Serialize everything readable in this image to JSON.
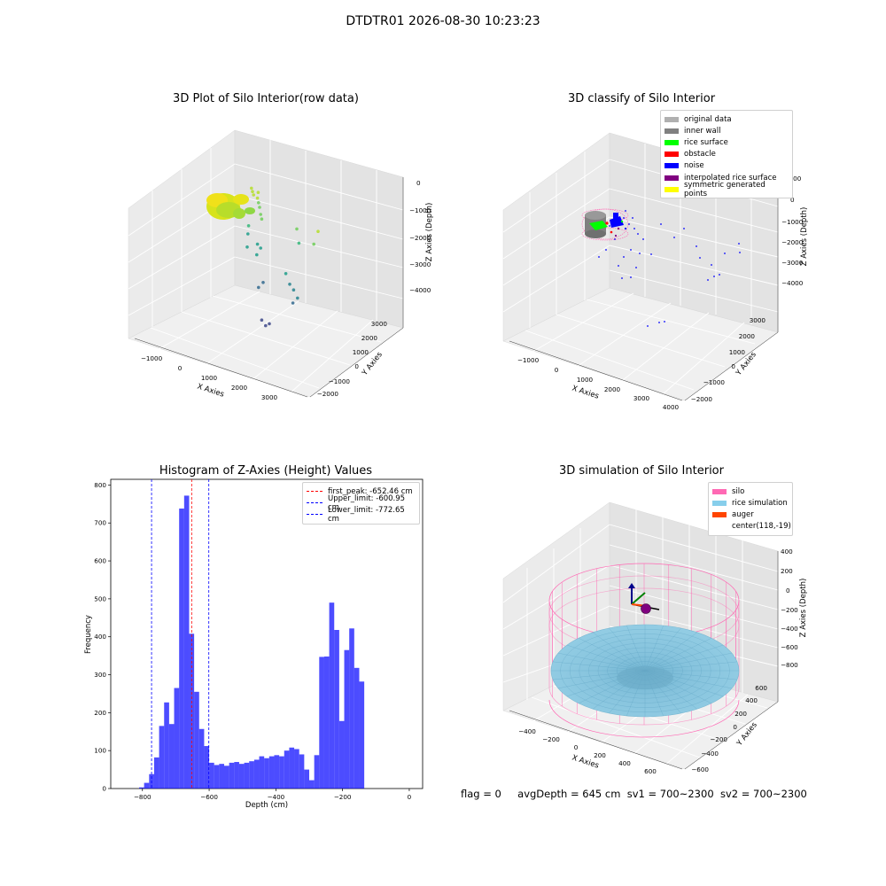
{
  "figure": {
    "title": "DTDTR01 2026-08-30 10:23:23",
    "status": {
      "flag": "flag = 0",
      "avg_depth": "avgDepth = 645 cm",
      "sv1": "sv1 = 700~2300",
      "sv2": "sv2 = 700~2300"
    }
  },
  "chart_data": [
    {
      "type": "scatter",
      "title": "3D Plot of Silo Interior(row data)",
      "xlabel": "X Axies",
      "ylabel": "Y Axies",
      "zlabel": "Z Axies (Depth)",
      "x_ticks": [
        "−1000",
        "0",
        "1000",
        "2000",
        "3000"
      ],
      "y_ticks": [
        "−2000",
        "−1000",
        "0",
        "1000",
        "2000",
        "3000"
      ],
      "z_ticks": [
        "0",
        "−1000",
        "−2000",
        "−3000",
        "−4000"
      ],
      "colormap": "viridis",
      "points": [
        {
          "x": -600,
          "y": 2800,
          "z": -900
        },
        {
          "x": -500,
          "y": 2700,
          "z": -950
        },
        {
          "x": -400,
          "y": 2600,
          "z": -1000
        },
        {
          "x": -300,
          "y": 2700,
          "z": -900
        },
        {
          "x": -200,
          "y": 2500,
          "z": -1000
        },
        {
          "x": -100,
          "y": 2400,
          "z": -1100
        },
        {
          "x": 0,
          "y": 2300,
          "z": -1200
        },
        {
          "x": 100,
          "y": 2200,
          "z": -1400
        },
        {
          "x": 200,
          "y": 2100,
          "z": -1500
        },
        {
          "x": -200,
          "y": 2000,
          "z": -1900
        },
        {
          "x": -100,
          "y": 1800,
          "z": -2100
        },
        {
          "x": 0,
          "y": 1600,
          "z": -2500
        },
        {
          "x": 300,
          "y": 1700,
          "z": -2300
        },
        {
          "x": 400,
          "y": 1500,
          "z": -2600
        },
        {
          "x": 600,
          "y": 1400,
          "z": -2200
        },
        {
          "x": 1500,
          "y": 2000,
          "z": -1300
        },
        {
          "x": 1700,
          "y": 1800,
          "z": -1700
        },
        {
          "x": 2500,
          "y": 1600,
          "z": -800
        },
        {
          "x": 2600,
          "y": 1200,
          "z": -1100
        },
        {
          "x": 1800,
          "y": 900,
          "z": -2500
        },
        {
          "x": 2000,
          "y": 800,
          "z": -2800
        },
        {
          "x": 2200,
          "y": 700,
          "z": -2900
        },
        {
          "x": 2400,
          "y": 600,
          "z": -3100
        },
        {
          "x": 2300,
          "y": 500,
          "z": -3300
        },
        {
          "x": 1000,
          "y": 900,
          "z": -3200
        },
        {
          "x": 900,
          "y": 800,
          "z": -3400
        },
        {
          "x": 1700,
          "y": -300,
          "z": -3900
        },
        {
          "x": 1900,
          "y": -400,
          "z": -4000
        },
        {
          "x": 2000,
          "y": -350,
          "z": -3900
        }
      ]
    },
    {
      "type": "scatter",
      "title": "3D classify of Silo Interior",
      "xlabel": "X Axies",
      "ylabel": "Y Axies",
      "zlabel": "Z Axies (Depth)",
      "x_ticks": [
        "−1000",
        "0",
        "1000",
        "2000",
        "3000",
        "4000"
      ],
      "y_ticks": [
        "−2000",
        "−1000",
        "0",
        "1000",
        "2000",
        "3000"
      ],
      "z_ticks": [
        "1000",
        "0",
        "−1000",
        "−2000",
        "−3000",
        "−4000"
      ],
      "legend": [
        {
          "label": "original data",
          "color": "#b0b0b0"
        },
        {
          "label": "inner wall",
          "color": "#808080"
        },
        {
          "label": "rice surface",
          "color": "#00ff00"
        },
        {
          "label": "obstacle",
          "color": "#ff0000"
        },
        {
          "label": "noise",
          "color": "#0000ff"
        },
        {
          "label": "interpolated rice surface",
          "color": "#800080"
        },
        {
          "label": "symmetric generated points",
          "color": "#ffff00"
        }
      ]
    },
    {
      "type": "bar",
      "title": "Histogram of Z-Axies (Height) Values",
      "xlabel": "Depth (cm)",
      "ylabel": "Frequency",
      "bar_color": "#0000ff",
      "bar_opacity": 0.7,
      "bin_width": 15,
      "bin_start": -810,
      "values": [
        3,
        15,
        38,
        82,
        165,
        227,
        170,
        265,
        738,
        772,
        408,
        255,
        157,
        112,
        68,
        62,
        65,
        60,
        68,
        70,
        65,
        68,
        72,
        76,
        85,
        80,
        85,
        88,
        85,
        100,
        108,
        104,
        90,
        50,
        22,
        88,
        347,
        348,
        490,
        418,
        178,
        365,
        422,
        318,
        282
      ],
      "xlim": [
        -895,
        40
      ],
      "ylim": [
        0,
        815
      ],
      "x_ticks": [
        -800,
        -600,
        -400,
        -200,
        0
      ],
      "x_tick_labels": [
        "−800",
        "−600",
        "−400",
        "−200",
        "0"
      ],
      "y_ticks": [
        0,
        100,
        200,
        300,
        400,
        500,
        600,
        700,
        800
      ],
      "y_tick_labels": [
        "0",
        "100",
        "200",
        "300",
        "400",
        "500",
        "600",
        "700",
        "800"
      ],
      "vlines": [
        {
          "label": "first_peak: -652.46 cm",
          "x": -652.46,
          "color": "#ff0000"
        },
        {
          "label": "Upper_limit: -600.95 cm",
          "x": -600.95,
          "color": "#0000ff"
        },
        {
          "label": "Lower_limit: -772.65 cm",
          "x": -772.65,
          "color": "#0000ff"
        }
      ]
    },
    {
      "type": "surface",
      "title": "3D simulation of Silo Interior",
      "xlabel": "X Axies",
      "ylabel": "Y Axies",
      "zlabel": "Z Axies (Depth)",
      "x_ticks": [
        "−400",
        "−200",
        "0",
        "200",
        "400",
        "600"
      ],
      "y_ticks": [
        "−600",
        "−400",
        "−200",
        "0",
        "200",
        "400",
        "600"
      ],
      "z_ticks": [
        "400",
        "200",
        "0",
        "−200",
        "−400",
        "−600",
        "−800"
      ],
      "legend": [
        {
          "label": "silo",
          "color": "#ff69b4"
        },
        {
          "label": "rice simulation",
          "color": "#87ceeb"
        },
        {
          "label": "auger",
          "color": "#ff4500"
        },
        {
          "label": "center(118,-19)",
          "color": ""
        }
      ]
    }
  ]
}
